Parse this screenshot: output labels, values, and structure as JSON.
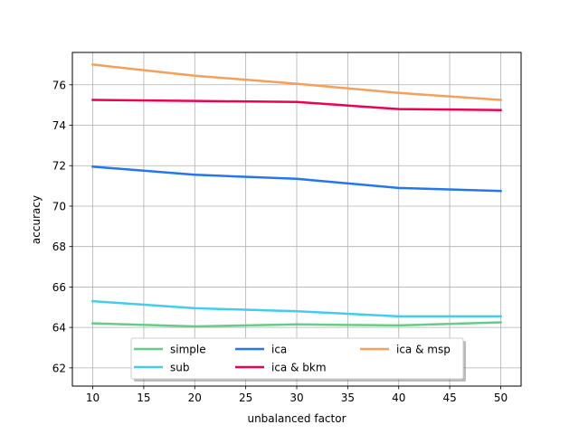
{
  "chart_data": {
    "type": "line",
    "title": "",
    "xlabel": "unbalanced factor",
    "ylabel": "accuracy",
    "xlim": [
      8,
      52
    ],
    "ylim": [
      61.1,
      77.6
    ],
    "xticks": [
      10,
      15,
      20,
      25,
      30,
      35,
      40,
      45,
      50
    ],
    "yticks": [
      62,
      64,
      66,
      68,
      70,
      72,
      74,
      76
    ],
    "grid": true,
    "legend_placement": "lower-center",
    "x": [
      10,
      20,
      30,
      40,
      50
    ],
    "series": [
      {
        "name": "simple",
        "color": "#66cc88",
        "values": [
          64.2,
          64.05,
          64.15,
          64.1,
          64.25
        ]
      },
      {
        "name": "sub",
        "color": "#44ccf0",
        "values": [
          65.3,
          64.95,
          64.8,
          64.55,
          64.55
        ]
      },
      {
        "name": "ica",
        "color": "#2277ee",
        "values": [
          71.95,
          71.55,
          71.35,
          70.9,
          70.75
        ]
      },
      {
        "name": "ica & bkm",
        "color": "#ee0055",
        "values": [
          75.25,
          75.2,
          75.15,
          74.8,
          74.75
        ]
      },
      {
        "name": "ica & msp",
        "color": "#f5a05a",
        "values": [
          77.0,
          76.45,
          76.05,
          75.6,
          75.25
        ]
      }
    ]
  }
}
